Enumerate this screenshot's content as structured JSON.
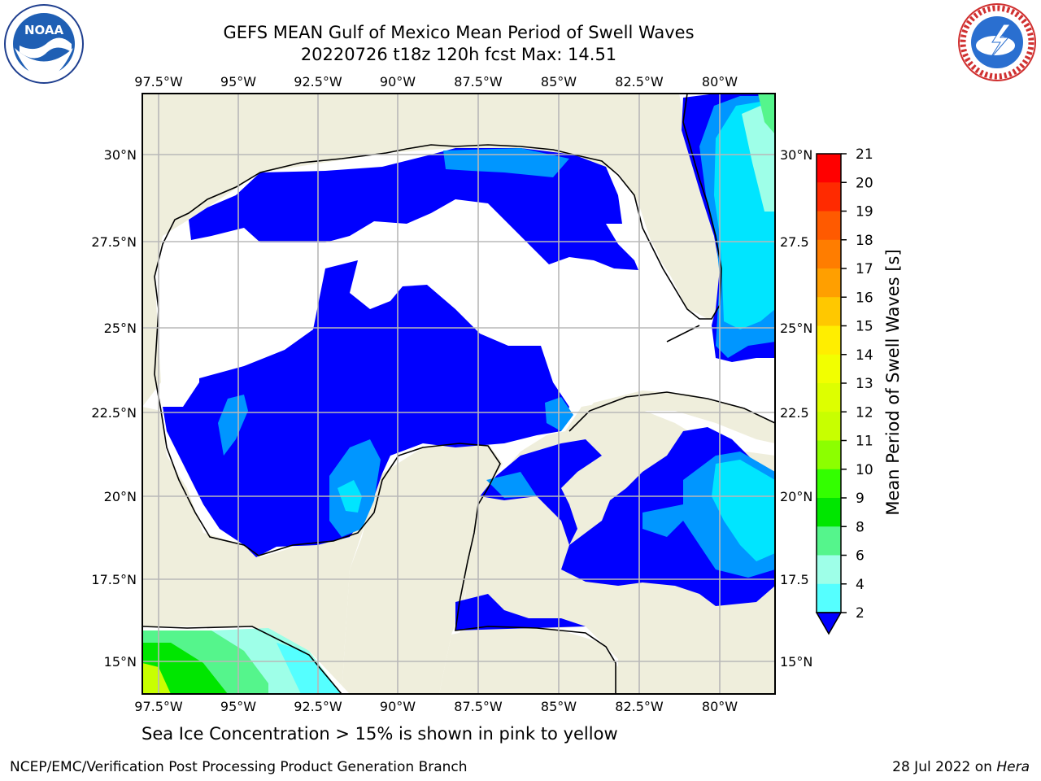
{
  "title_line1": "GEFS MEAN Gulf of Mexico Mean Period of Swell Waves",
  "title_line2": "20220726 t18z 120h fcst   Max: 14.51",
  "lon_ticks": [
    "97.5°W",
    "95°W",
    "92.5°W",
    "90°W",
    "87.5°W",
    "85°W",
    "82.5°W",
    "80°W"
  ],
  "lat_ticks_left": [
    "30°N",
    "27.5°N",
    "25°N",
    "22.5°N",
    "20°N",
    "17.5°N",
    "15°N"
  ],
  "lat_ticks_right": [
    "30°N",
    "27.5",
    "25°N",
    "22.5",
    "20°N",
    "17.5",
    "15°N"
  ],
  "colorbar": {
    "label": "Mean Period of Swell Waves [s]",
    "ticks": [
      "21",
      "20",
      "19",
      "18",
      "17",
      "16",
      "15",
      "14",
      "13",
      "12",
      "11",
      "10",
      "9",
      "8",
      "6",
      "4",
      "2"
    ],
    "colors": [
      "#ff0000",
      "#ff2a00",
      "#ff5a00",
      "#ff7d00",
      "#ff9f00",
      "#ffc800",
      "#ffee00",
      "#f2ff00",
      "#ddff00",
      "#c8ff00",
      "#8cff00",
      "#33ff00",
      "#00e600",
      "#55f58c",
      "#9effe8",
      "#55ffff",
      "#00e5ff",
      "#0096ff",
      "#0000ff"
    ]
  },
  "legend_colors": {
    "land": "#efeedc",
    "period_2_4": "#0000ff",
    "period_4_6": "#0096ff",
    "period_6_8": "#00e5ff",
    "period_8_9": "#9effe8",
    "period_9_10": "#55f58c",
    "period_10_11": "#00e600",
    "period_12_13": "#c8ff00"
  },
  "note": "Sea Ice Concentration > 15% is shown in pink to yellow",
  "footer_left": "NCEP/EMC/Verification Post Processing Product Generation Branch",
  "footer_right_prefix": "28 Jul 2022 on ",
  "footer_right_host": "Hera",
  "logos": {
    "left": "noaa-logo",
    "right": "nws-logo",
    "left_text": "NOAA"
  }
}
